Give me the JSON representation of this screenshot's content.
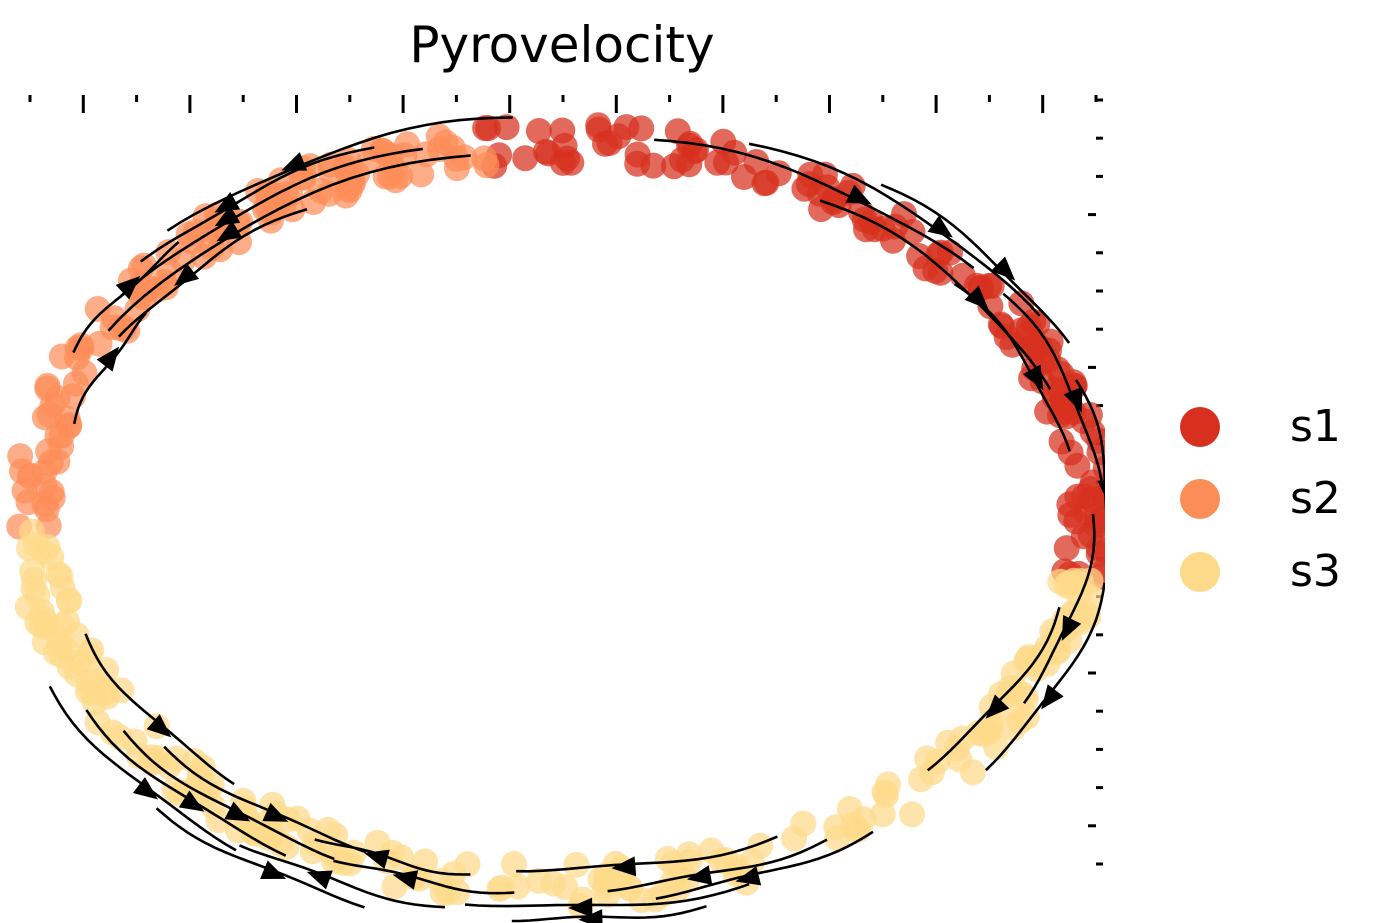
{
  "chart_data": {
    "type": "scatter",
    "subtype": "velocity-stream-embedding",
    "title": "Pyrovelocity",
    "xlabel": "",
    "ylabel": "",
    "tick_labels_shown": false,
    "grid": false,
    "legend_position": "right",
    "stream_direction": "clockwise",
    "series": [
      {
        "name": "s1",
        "color": "#d7301f",
        "angle_range_deg": [
          -98,
          10
        ]
      },
      {
        "name": "s2",
        "color": "#fc8d59",
        "angle_range_deg": [
          178,
          262
        ]
      },
      {
        "name": "s3",
        "color": "#fdd98a",
        "angle_range_deg": [
          10,
          178
        ]
      }
    ],
    "legend": [
      {
        "label": "s1",
        "color": "#d7301f"
      },
      {
        "label": "s2",
        "color": "#fc8d59"
      },
      {
        "label": "s3",
        "color": "#fdd98a"
      }
    ]
  }
}
